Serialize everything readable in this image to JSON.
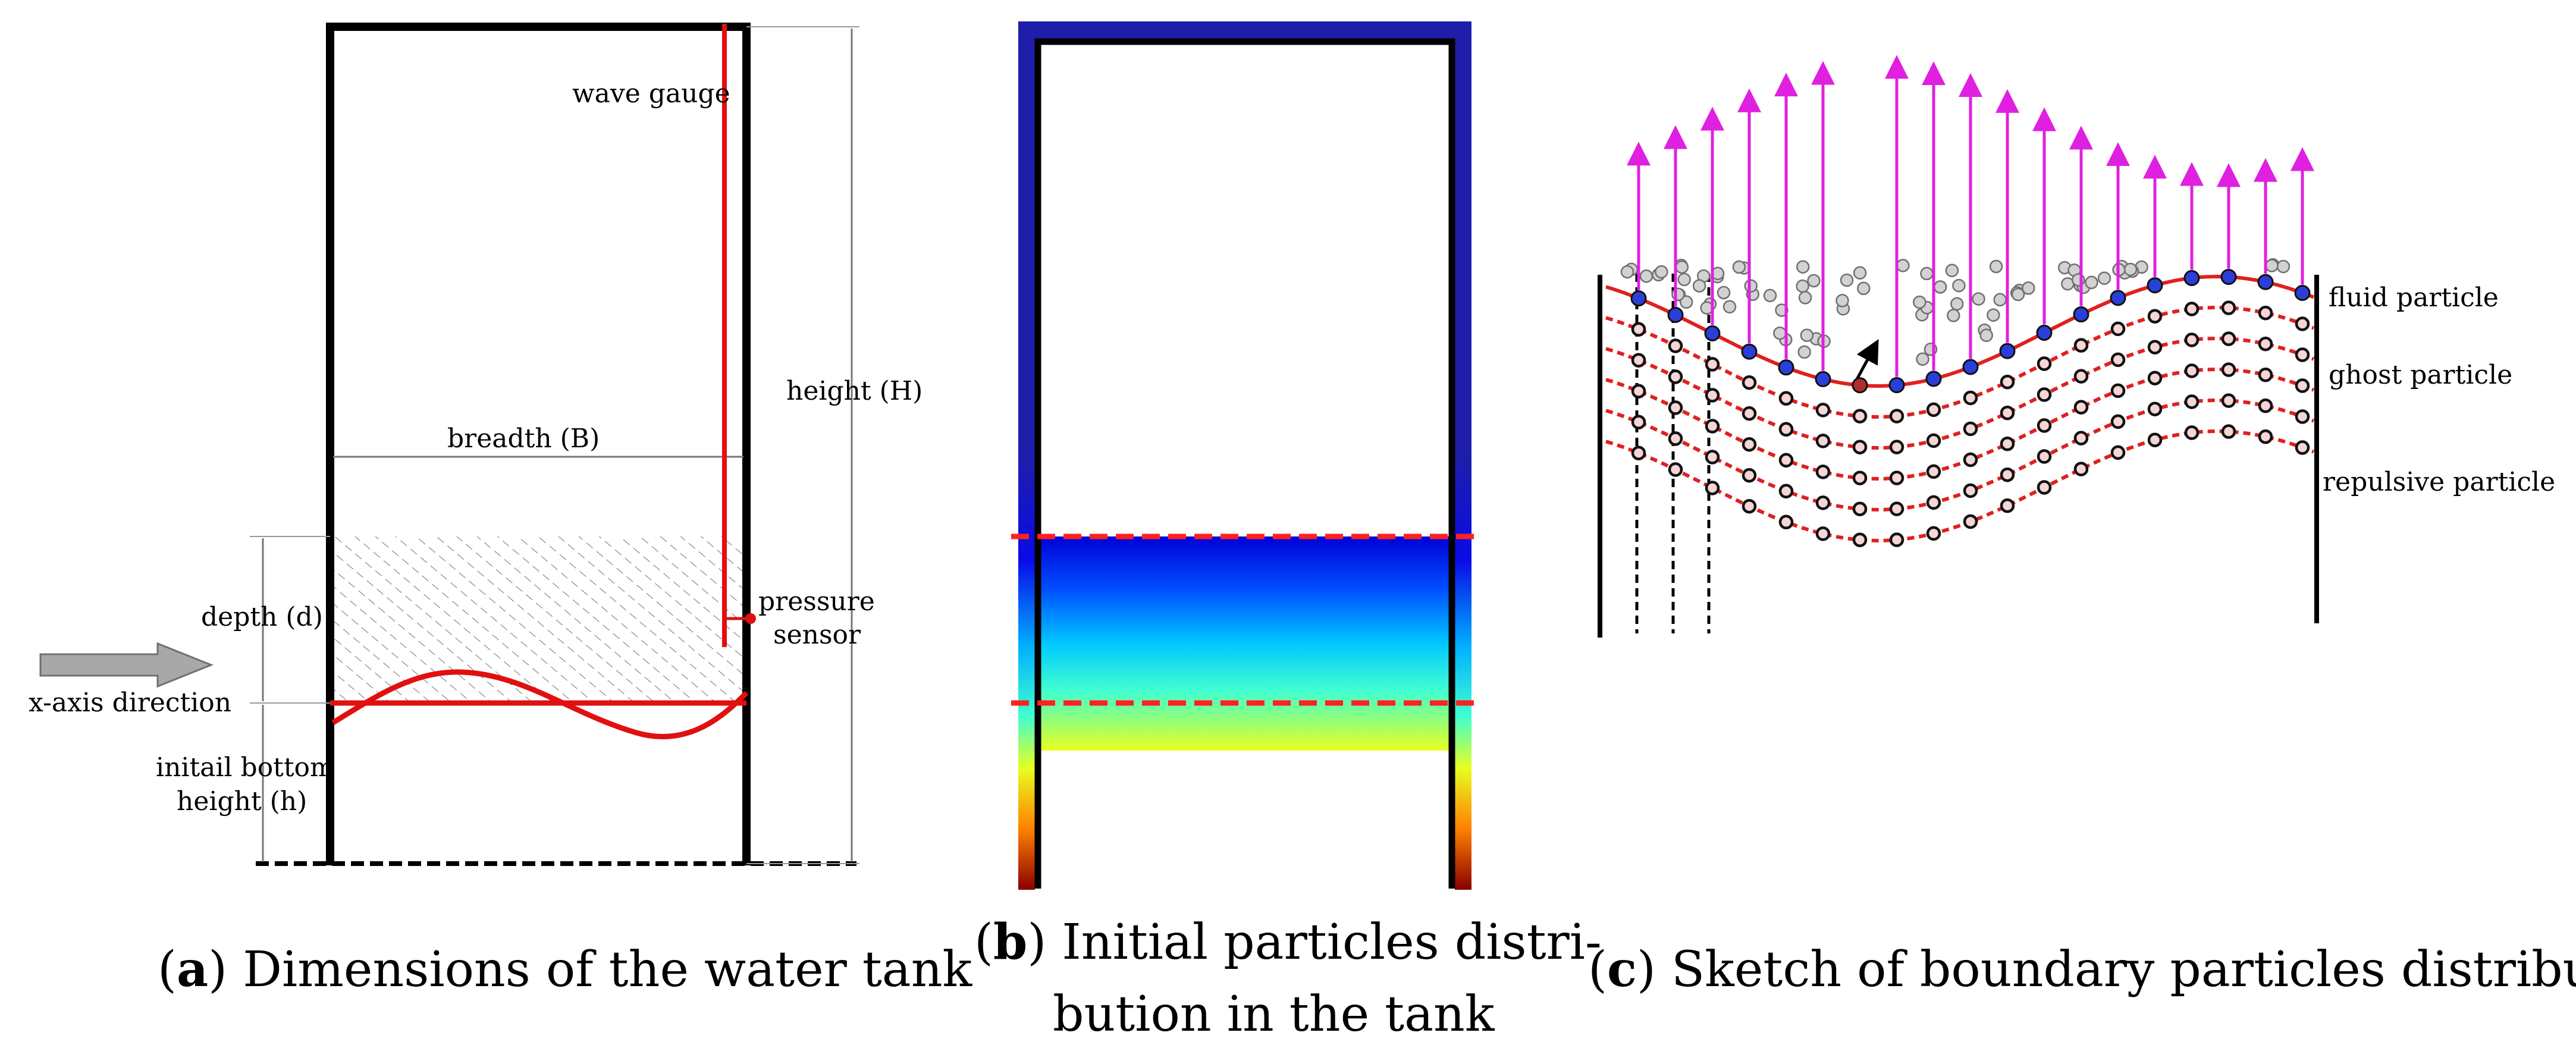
{
  "panel_a": {
    "caption_letter": "a",
    "caption_text": ") Dimensions of the water tank",
    "labels": {
      "wave_gauge": "wave gauge",
      "height": "height (H)",
      "breadth": "breadth (B)",
      "depth": "depth (d)",
      "pressure": "pressure",
      "sensor": "sensor",
      "x_axis": "x-axis direction",
      "bottom_1": "initail bottom",
      "bottom_2": "height (h)"
    }
  },
  "panel_b": {
    "caption_letter": "b",
    "caption_line1": ") Initial particles distri-",
    "caption_line2": "bution in the tank",
    "colors": {
      "wall_top": "#1e1eaa",
      "free_surface_line": "#ff2020"
    }
  },
  "panel_c": {
    "caption_letter": "c",
    "caption_text": ") Sketch of boundary particles distribution",
    "labels": {
      "fluid": "fluid particle",
      "ghost": "ghost particle",
      "repulsive": "repulsive particle"
    },
    "colors": {
      "ghost": "#2a3fd8",
      "arrow": "#e020e0",
      "boundary": "#e02020"
    }
  }
}
